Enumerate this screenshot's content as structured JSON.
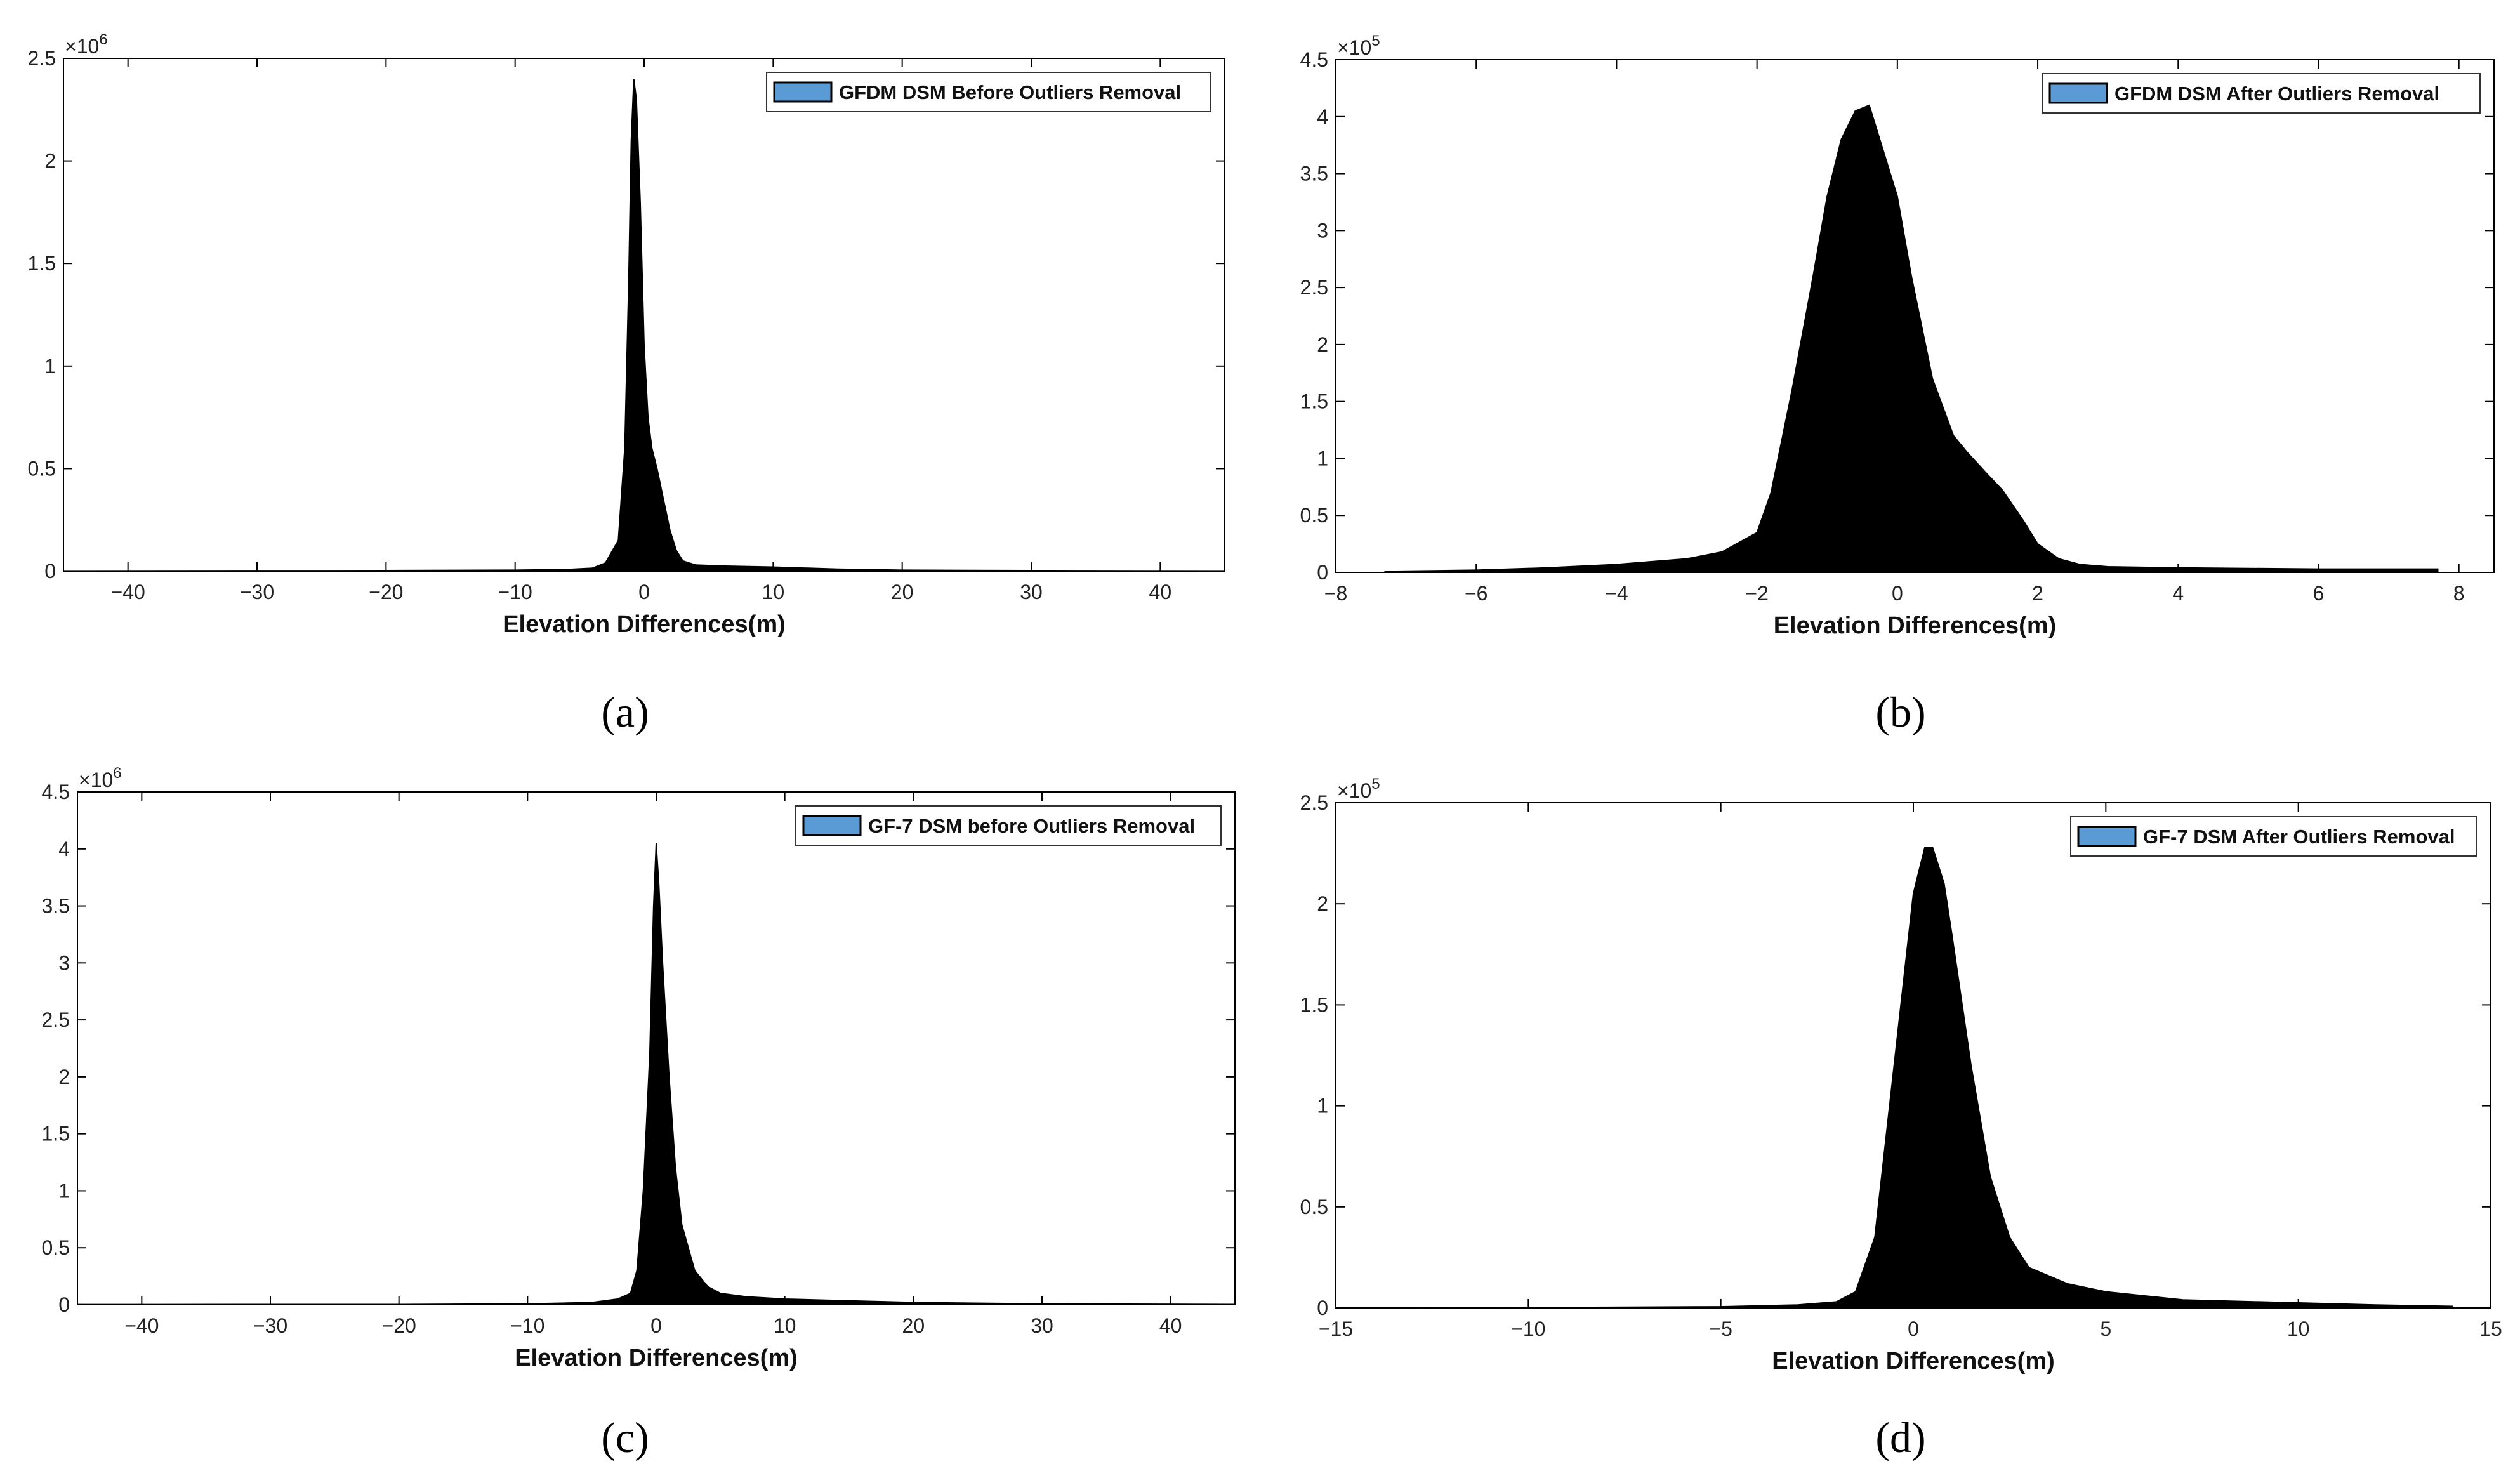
{
  "colors": {
    "fill": "#000000",
    "legend_swatch": "#5b9bd5",
    "axis": "#000000",
    "background": "#ffffff"
  },
  "chart_data": [
    {
      "id": "a",
      "type": "area",
      "caption": "(a)",
      "xlabel": "Elevation Differences(m)",
      "ylabel": "",
      "y_scale_label": {
        "base": "×10",
        "exp": "6"
      },
      "xlim": [
        -45,
        45
      ],
      "ylim": [
        0,
        2.5
      ],
      "xticks": [
        -40,
        -30,
        -20,
        -10,
        0,
        10,
        20,
        30,
        40
      ],
      "xtick_labels": [
        "−40",
        "−30",
        "−20",
        "−10",
        "0",
        "10",
        "20",
        "30",
        "40"
      ],
      "yticks": [
        0,
        0.5,
        1,
        1.5,
        2,
        2.5
      ],
      "ytick_labels": [
        "0",
        "0.5",
        "1",
        "1.5",
        "2",
        "2.5"
      ],
      "legend": {
        "position": "top-right",
        "entries": [
          "GFDM DSM Before Outliers Removal"
        ]
      },
      "series": [
        {
          "x": [
            -45,
            -20,
            -10,
            -6,
            -4,
            -3,
            -2,
            -1.5,
            -1.2,
            -1,
            -0.8,
            -0.6,
            -0.3,
            0,
            0.3,
            0.6,
            1,
            1.5,
            2,
            2.5,
            3,
            4,
            6,
            10,
            15,
            20,
            30,
            45
          ],
          "y": [
            0.002,
            0.003,
            0.005,
            0.008,
            0.015,
            0.04,
            0.15,
            0.6,
            1.4,
            2.1,
            2.4,
            2.3,
            1.8,
            1.1,
            0.75,
            0.6,
            0.5,
            0.35,
            0.2,
            0.1,
            0.05,
            0.03,
            0.025,
            0.02,
            0.01,
            0.005,
            0.003,
            0.002
          ]
        }
      ]
    },
    {
      "id": "b",
      "type": "area",
      "caption": "(b)",
      "xlabel": "Elevation Differences(m)",
      "ylabel": "",
      "y_scale_label": {
        "base": "×10",
        "exp": "5"
      },
      "xlim": [
        -8,
        8.5
      ],
      "ylim": [
        0,
        4.5
      ],
      "xticks": [
        -8,
        -6,
        -4,
        -2,
        0,
        2,
        4,
        6,
        8
      ],
      "xtick_labels": [
        "−8",
        "−6",
        "−4",
        "−2",
        "0",
        "2",
        "4",
        "6",
        "8"
      ],
      "yticks": [
        0,
        0.5,
        1,
        1.5,
        2,
        2.5,
        3,
        3.5,
        4,
        4.5
      ],
      "ytick_labels": [
        "0",
        "0.5",
        "1",
        "1.5",
        "2",
        "2.5",
        "3",
        "3.5",
        "4",
        "4.5"
      ],
      "legend": {
        "position": "top-right",
        "entries": [
          "GFDM DSM After Outliers Removal"
        ]
      },
      "series": [
        {
          "x": [
            -7.3,
            -6,
            -5,
            -4,
            -3,
            -2.5,
            -2,
            -1.8,
            -1.5,
            -1.2,
            -1,
            -0.8,
            -0.6,
            -0.4,
            -0.2,
            0,
            0.2,
            0.5,
            0.8,
            1,
            1.3,
            1.5,
            1.8,
            2,
            2.3,
            2.6,
            3,
            4,
            5,
            6,
            7,
            7.7
          ],
          "y": [
            0.01,
            0.02,
            0.04,
            0.07,
            0.12,
            0.18,
            0.35,
            0.7,
            1.6,
            2.6,
            3.3,
            3.8,
            4.05,
            4.1,
            3.7,
            3.3,
            2.6,
            1.7,
            1.2,
            1.05,
            0.85,
            0.72,
            0.45,
            0.25,
            0.12,
            0.07,
            0.05,
            0.04,
            0.035,
            0.03,
            0.03,
            0.03
          ]
        }
      ]
    },
    {
      "id": "c",
      "type": "area",
      "caption": "(c)",
      "xlabel": "Elevation Differences(m)",
      "ylabel": "",
      "y_scale_label": {
        "base": "×10",
        "exp": "6"
      },
      "xlim": [
        -45,
        45
      ],
      "ylim": [
        0,
        4.5
      ],
      "xticks": [
        -40,
        -30,
        -20,
        -10,
        0,
        10,
        20,
        30,
        40
      ],
      "xtick_labels": [
        "−40",
        "−30",
        "−20",
        "−10",
        "0",
        "10",
        "20",
        "30",
        "40"
      ],
      "yticks": [
        0,
        0.5,
        1,
        1.5,
        2,
        2.5,
        3,
        3.5,
        4,
        4.5
      ],
      "ytick_labels": [
        "0",
        "0.5",
        "1",
        "1.5",
        "2",
        "2.5",
        "3",
        "3.5",
        "4",
        "4.5"
      ],
      "legend": {
        "position": "top-right",
        "entries": [
          "GF-7 DSM before Outliers Removal"
        ]
      },
      "series": [
        {
          "x": [
            -45,
            -20,
            -10,
            -5,
            -3,
            -2,
            -1.5,
            -1,
            -0.5,
            -0.2,
            0,
            0.2,
            0.5,
            1,
            1.5,
            2,
            3,
            4,
            5,
            7,
            10,
            15,
            20,
            30,
            45
          ],
          "y": [
            0.002,
            0.003,
            0.008,
            0.02,
            0.05,
            0.1,
            0.3,
            1.0,
            2.2,
            3.5,
            4.05,
            3.7,
            3.0,
            2.0,
            1.2,
            0.7,
            0.3,
            0.16,
            0.1,
            0.07,
            0.05,
            0.035,
            0.02,
            0.008,
            0.003
          ]
        }
      ]
    },
    {
      "id": "d",
      "type": "area",
      "caption": "(d)",
      "xlabel": "Elevation Differences(m)",
      "ylabel": "",
      "y_scale_label": {
        "base": "×10",
        "exp": "5"
      },
      "xlim": [
        -15,
        15
      ],
      "ylim": [
        0,
        2.5
      ],
      "xticks": [
        -15,
        -10,
        -5,
        0,
        5,
        10,
        15
      ],
      "xtick_labels": [
        "−15",
        "−10",
        "−5",
        "0",
        "5",
        "10",
        "15"
      ],
      "yticks": [
        0,
        0.5,
        1,
        1.5,
        2,
        2.5
      ],
      "ytick_labels": [
        "0",
        "0.5",
        "1",
        "1.5",
        "2",
        "2.5"
      ],
      "legend": {
        "position": "top-right",
        "entries": [
          "GF-7 DSM After Outliers Removal"
        ]
      },
      "series": [
        {
          "x": [
            -13,
            -10,
            -5,
            -3,
            -2,
            -1.5,
            -1,
            -0.5,
            0,
            0.3,
            0.5,
            0.8,
            1,
            1.5,
            2,
            2.5,
            3,
            4,
            5,
            7,
            10,
            12,
            14
          ],
          "y": [
            0.001,
            0.002,
            0.006,
            0.015,
            0.03,
            0.08,
            0.35,
            1.2,
            2.05,
            2.28,
            2.28,
            2.1,
            1.85,
            1.2,
            0.65,
            0.35,
            0.2,
            0.12,
            0.08,
            0.04,
            0.025,
            0.015,
            0.008
          ]
        }
      ]
    }
  ]
}
